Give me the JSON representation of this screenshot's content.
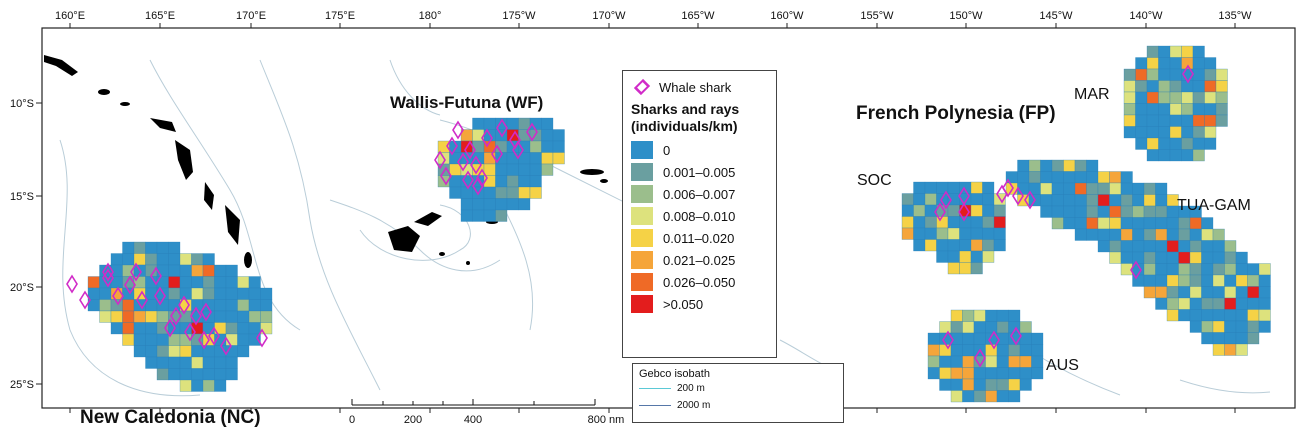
{
  "axes": {
    "lon_ticks": [
      "160°E",
      "165°E",
      "170°E",
      "175°E",
      "180°",
      "175°W",
      "170°W",
      "165°W",
      "160°W",
      "155°W",
      "150°W",
      "145°W",
      "140°W",
      "135°W"
    ],
    "lat_ticks": [
      "10°S",
      "15°S",
      "20°S",
      "25°S"
    ]
  },
  "regions": {
    "new_caledonia": "New Caledonia (NC)",
    "wallis_futuna": "Wallis-Futuna (WF)",
    "french_polynesia": "French Polynesia (FP)"
  },
  "subregions": {
    "mar": "MAR",
    "soc": "SOC",
    "tua_gam": "TUA-GAM",
    "aus": "AUS"
  },
  "legend": {
    "whale_shark": "Whale shark",
    "title_line1": "Sharks and rays",
    "title_line2": "(individuals/km)",
    "classes": [
      {
        "label": "0",
        "color": "#2e8fc8"
      },
      {
        "label": "0.001–0.005",
        "color": "#6a9fa0"
      },
      {
        "label": "0.006–0.007",
        "color": "#9bbe8c"
      },
      {
        "label": "0.008–0.010",
        "color": "#dde27d"
      },
      {
        "label": "0.011–0.020",
        "color": "#f5d246"
      },
      {
        "label": "0.021–0.025",
        "color": "#f5a53a"
      },
      {
        "label": "0.026–0.050",
        "color": "#ef6a26"
      },
      {
        "label": ">0.050",
        "color": "#e31d1d"
      }
    ]
  },
  "isobath": {
    "title": "Gebco isobath",
    "items": [
      {
        "label": "200 m",
        "color": "#5bc9d6"
      },
      {
        "label": "2000 m",
        "color": "#5677a8"
      }
    ]
  },
  "scalebar": {
    "labels": [
      "0",
      "200",
      "400",
      "800 nm"
    ]
  },
  "colors": {
    "marker": "#d12bc8",
    "land": "#000000",
    "isobath_faint": "#b9cdd8"
  }
}
